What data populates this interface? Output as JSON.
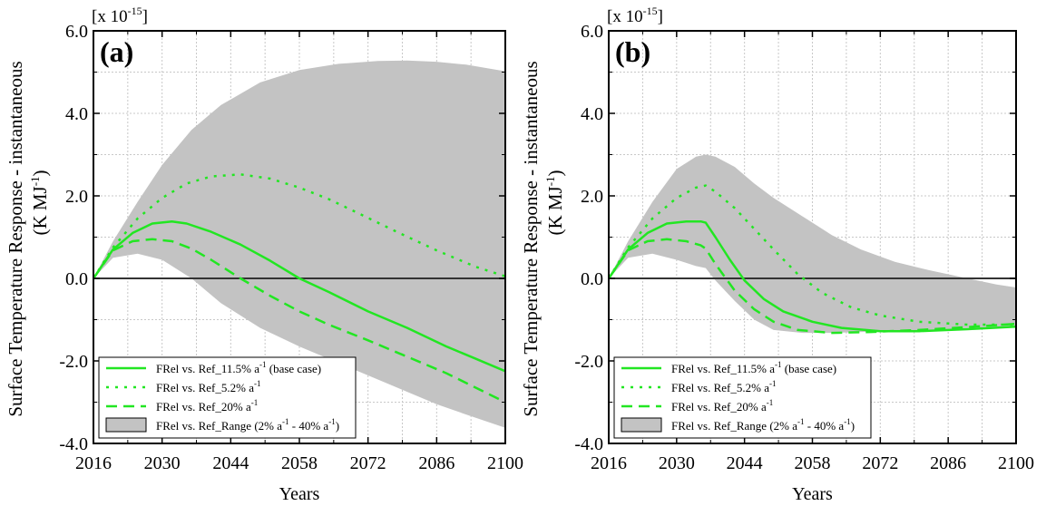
{
  "chart_data": [
    {
      "type": "line",
      "panel_label": "(a)",
      "scale_label": "[x 10",
      "scale_exponent": "-15",
      "scale_close": "]",
      "ylabel": "Surface Temperature Response - instantaneous",
      "ylabel_unit": "(K MJ",
      "ylabel_unit_exp": "-1",
      "ylabel_unit_close": ")",
      "xlabel": "Years",
      "xlim": [
        2016,
        2100
      ],
      "ylim": [
        -4.0,
        6.0
      ],
      "xticks": [
        2016,
        2030,
        2044,
        2058,
        2072,
        2086,
        2100
      ],
      "yticks": [
        -4.0,
        -2.0,
        0.0,
        2.0,
        4.0,
        6.0
      ],
      "ytick_labels": [
        "-4.0",
        "-2.0",
        "0.0",
        "2.0",
        "4.0",
        "6.0"
      ],
      "grid": true,
      "legend_position": "bottom-left",
      "series": [
        {
          "name_prefix": "FRel vs. Ref_11.5% a",
          "name_exp": "-1",
          "name_suffix": " (base case)",
          "style": "solid",
          "color": "#22e622",
          "x": [
            2016,
            2020,
            2024,
            2028,
            2032,
            2035,
            2040,
            2046,
            2052,
            2058,
            2064,
            2072,
            2080,
            2088,
            2094,
            2100
          ],
          "y": [
            0.0,
            0.7,
            1.1,
            1.33,
            1.38,
            1.33,
            1.13,
            0.82,
            0.43,
            0.0,
            -0.33,
            -0.8,
            -1.2,
            -1.65,
            -1.95,
            -2.25
          ]
        },
        {
          "name_prefix": "FRel vs. Ref_5.2% a",
          "name_exp": "-1",
          "name_suffix": "",
          "style": "dotted",
          "color": "#22e622",
          "x": [
            2016,
            2020,
            2025,
            2030,
            2035,
            2040,
            2046,
            2052,
            2058,
            2064,
            2070,
            2078,
            2086,
            2094,
            2100
          ],
          "y": [
            0.0,
            0.75,
            1.45,
            1.95,
            2.3,
            2.47,
            2.52,
            2.42,
            2.2,
            1.92,
            1.58,
            1.12,
            0.68,
            0.28,
            0.05
          ]
        },
        {
          "name_prefix": "FRel vs. Ref_20% a",
          "name_exp": "-1",
          "name_suffix": "",
          "style": "dashed",
          "color": "#22e622",
          "x": [
            2016,
            2020,
            2024,
            2028,
            2032,
            2036,
            2040,
            2046,
            2052,
            2058,
            2064,
            2072,
            2080,
            2088,
            2094,
            2100
          ],
          "y": [
            0.0,
            0.68,
            0.9,
            0.95,
            0.9,
            0.72,
            0.45,
            0.0,
            -0.42,
            -0.8,
            -1.12,
            -1.5,
            -1.9,
            -2.3,
            -2.65,
            -3.0
          ]
        }
      ],
      "range": {
        "name_prefix": "FRel vs. Ref_Range (2% a",
        "name_exp": "-1",
        "name_mid": " - 40% a",
        "name_exp2": "-1",
        "name_suffix": ")",
        "color": "#c3c3c3",
        "x": [
          2016,
          2020,
          2025,
          2030,
          2036,
          2042,
          2050,
          2058,
          2066,
          2074,
          2080,
          2086,
          2092,
          2100
        ],
        "upper": [
          0.0,
          0.9,
          1.85,
          2.75,
          3.6,
          4.2,
          4.75,
          5.05,
          5.2,
          5.27,
          5.28,
          5.25,
          5.18,
          5.02
        ],
        "lower": [
          0.0,
          0.5,
          0.6,
          0.45,
          0.0,
          -0.6,
          -1.2,
          -1.65,
          -2.05,
          -2.45,
          -2.75,
          -3.05,
          -3.3,
          -3.62
        ]
      }
    },
    {
      "type": "line",
      "panel_label": "(b)",
      "scale_label": "[x 10",
      "scale_exponent": "-15",
      "scale_close": "]",
      "ylabel": "Surface Temperature Response - instantaneous",
      "ylabel_unit": "(K MJ",
      "ylabel_unit_exp": "-1",
      "ylabel_unit_close": ")",
      "xlabel": "Years",
      "xlim": [
        2016,
        2100
      ],
      "ylim": [
        -4.0,
        6.0
      ],
      "xticks": [
        2016,
        2030,
        2044,
        2058,
        2072,
        2086,
        2100
      ],
      "yticks": [
        -4.0,
        -2.0,
        0.0,
        2.0,
        4.0,
        6.0
      ],
      "ytick_labels": [
        "-4.0",
        "-2.0",
        "0.0",
        "2.0",
        "4.0",
        "6.0"
      ],
      "grid": true,
      "legend_position": "bottom-left",
      "series": [
        {
          "name_prefix": "FRel vs. Ref_11.5% a",
          "name_exp": "-1",
          "name_suffix": " (base case)",
          "style": "solid",
          "color": "#22e622",
          "x": [
            2016,
            2020,
            2024,
            2028,
            2032,
            2035,
            2036,
            2038,
            2041,
            2044,
            2048,
            2052,
            2058,
            2064,
            2072,
            2080,
            2090,
            2100
          ],
          "y": [
            0.0,
            0.7,
            1.1,
            1.33,
            1.38,
            1.38,
            1.35,
            1.0,
            0.45,
            -0.05,
            -0.5,
            -0.8,
            -1.05,
            -1.2,
            -1.28,
            -1.28,
            -1.23,
            -1.17
          ]
        },
        {
          "name_prefix": "FRel vs. Ref_5.2% a",
          "name_exp": "-1",
          "name_suffix": "",
          "style": "dotted",
          "color": "#22e622",
          "x": [
            2016,
            2020,
            2025,
            2030,
            2034,
            2036,
            2038,
            2042,
            2046,
            2050,
            2055,
            2060,
            2066,
            2072,
            2080,
            2090,
            2100
          ],
          "y": [
            0.0,
            0.75,
            1.45,
            1.95,
            2.2,
            2.25,
            2.1,
            1.7,
            1.2,
            0.7,
            0.1,
            -0.35,
            -0.7,
            -0.9,
            -1.05,
            -1.12,
            -1.12
          ]
        },
        {
          "name_prefix": "FRel vs. Ref_20% a",
          "name_exp": "-1",
          "name_suffix": "",
          "style": "dashed",
          "color": "#22e622",
          "x": [
            2016,
            2020,
            2024,
            2028,
            2032,
            2035,
            2036,
            2038,
            2042,
            2046,
            2050,
            2055,
            2062,
            2070,
            2080,
            2090,
            2100
          ],
          "y": [
            0.0,
            0.68,
            0.9,
            0.95,
            0.9,
            0.8,
            0.72,
            0.35,
            -0.3,
            -0.75,
            -1.05,
            -1.25,
            -1.32,
            -1.3,
            -1.25,
            -1.18,
            -1.1
          ]
        }
      ],
      "range": {
        "name_prefix": "FRel vs. Ref_Range (2% a",
        "name_exp": "-1",
        "name_mid": " - 40% a",
        "name_exp2": "-1",
        "name_suffix": ")",
        "color": "#c3c3c3",
        "x": [
          2016,
          2020,
          2025,
          2030,
          2034,
          2036,
          2038,
          2042,
          2046,
          2050,
          2056,
          2062,
          2068,
          2075,
          2082,
          2090,
          2096,
          2100
        ],
        "upper": [
          0.0,
          0.9,
          1.85,
          2.65,
          2.95,
          3.0,
          2.95,
          2.7,
          2.3,
          1.95,
          1.5,
          1.05,
          0.7,
          0.4,
          0.2,
          0.0,
          -0.15,
          -0.22
        ],
        "lower": [
          0.0,
          0.5,
          0.6,
          0.45,
          0.3,
          0.25,
          -0.05,
          -0.55,
          -1.0,
          -1.25,
          -1.32,
          -1.32,
          -1.3,
          -1.28,
          -1.25,
          -1.2,
          -1.17,
          -1.15
        ]
      }
    }
  ]
}
